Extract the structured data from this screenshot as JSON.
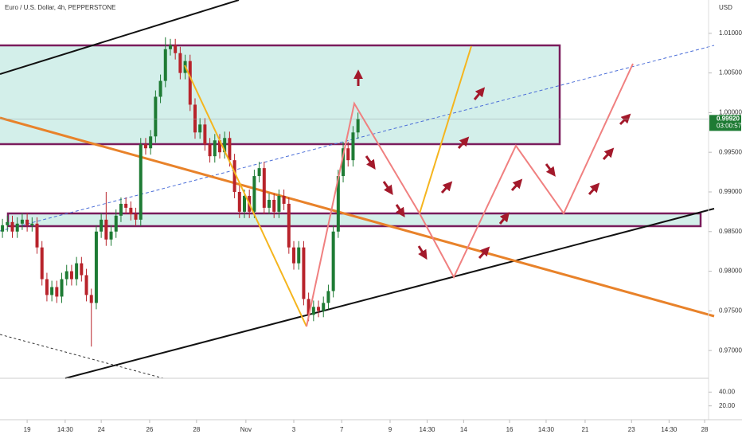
{
  "chart_data": {
    "type": "candlestick",
    "title": "Euro / U.S. Dollar, 4h, PEPPERSTONE",
    "currency": "USD",
    "last_price": {
      "value": 0.9992,
      "label": "0.99920"
    },
    "countdown": "03:00:57",
    "colors": {
      "up": "#1e7b34",
      "down": "#b8232b"
    },
    "open": [
      0.985,
      0.9858,
      0.9862,
      0.985,
      0.986,
      0.9865,
      0.9858,
      0.986,
      0.983,
      0.979,
      0.977,
      0.978,
      0.9768,
      0.979,
      0.98,
      0.979,
      0.981,
      0.9795,
      0.977,
      0.976,
      0.985,
      0.9865,
      0.984,
      0.985,
      0.987,
      0.9885,
      0.988,
      0.9872,
      0.9865,
      0.996,
      0.9955,
      0.997,
      1.002,
      1.004,
      1.008,
      1.0085,
      1.0075,
      1.005,
      1.0065,
      1.001,
      0.9975,
      0.9985,
      0.996,
      0.9945,
      0.9965,
      0.995,
      0.9968,
      0.994,
      0.99,
      0.9875,
      0.9895,
      0.9875,
      0.992,
      0.993,
      0.988,
      0.989,
      0.9875,
      0.9895,
      0.9885,
      0.983,
      0.981,
      0.983,
      0.9765,
      0.9745,
      0.9755,
      0.975,
      0.976,
      0.9775,
      0.985,
      0.992,
      0.9955,
      0.994,
      0.9975
    ],
    "high": [
      0.9866,
      0.987,
      0.987,
      0.9868,
      0.9873,
      0.9873,
      0.9868,
      0.9868,
      0.9838,
      0.9798,
      0.9788,
      0.9788,
      0.9798,
      0.9808,
      0.9808,
      0.9818,
      0.9818,
      0.9803,
      0.9778,
      0.9858,
      0.9873,
      0.99,
      0.9858,
      0.9878,
      0.9893,
      0.9893,
      0.9888,
      0.988,
      0.9968,
      0.9968,
      0.9978,
      1.0028,
      1.0048,
      1.0095,
      1.0093,
      1.0093,
      1.0083,
      1.0073,
      1.0073,
      1.0018,
      0.9993,
      0.9993,
      0.9968,
      0.9973,
      0.9973,
      0.9976,
      0.9976,
      0.9948,
      0.9908,
      0.9903,
      0.9903,
      0.9928,
      0.9938,
      0.9938,
      0.9898,
      0.9898,
      0.9903,
      0.9903,
      0.9893,
      0.9838,
      0.9838,
      0.9838,
      0.9773,
      0.9763,
      0.9763,
      0.9768,
      0.9783,
      0.9858,
      0.9928,
      0.9963,
      0.9963,
      0.9983,
      1.0
    ],
    "low": [
      0.9842,
      0.985,
      0.9842,
      0.9842,
      0.9852,
      0.985,
      0.985,
      0.9822,
      0.9782,
      0.9762,
      0.9762,
      0.976,
      0.976,
      0.9782,
      0.9782,
      0.9782,
      0.9787,
      0.9762,
      0.9705,
      0.9752,
      0.9842,
      0.9832,
      0.9832,
      0.9842,
      0.9862,
      0.9872,
      0.9864,
      0.9857,
      0.9857,
      0.9947,
      0.9947,
      0.9962,
      1.0012,
      1.0032,
      1.0072,
      1.0067,
      1.0042,
      1.0042,
      1.0002,
      0.9967,
      0.9967,
      0.9952,
      0.9937,
      0.9937,
      0.9942,
      0.9942,
      0.9932,
      0.9892,
      0.9867,
      0.9867,
      0.9867,
      0.9867,
      0.9912,
      0.9872,
      0.9872,
      0.9867,
      0.9867,
      0.9877,
      0.9822,
      0.9802,
      0.9802,
      0.9757,
      0.9737,
      0.9737,
      0.9742,
      0.9742,
      0.9752,
      0.9767,
      0.9842,
      0.9912,
      0.9932,
      0.9932,
      0.9967
    ],
    "close": [
      0.9858,
      0.9862,
      0.985,
      0.986,
      0.9865,
      0.9858,
      0.986,
      0.983,
      0.979,
      0.977,
      0.978,
      0.9768,
      0.979,
      0.98,
      0.979,
      0.981,
      0.9795,
      0.977,
      0.976,
      0.985,
      0.9865,
      0.984,
      0.985,
      0.987,
      0.9885,
      0.988,
      0.9872,
      0.9865,
      0.996,
      0.9955,
      0.997,
      1.002,
      1.004,
      1.008,
      1.0085,
      1.0075,
      1.005,
      1.0065,
      1.001,
      0.9975,
      0.9985,
      0.996,
      0.9945,
      0.9965,
      0.995,
      0.9968,
      0.994,
      0.99,
      0.9875,
      0.9895,
      0.9875,
      0.992,
      0.993,
      0.988,
      0.989,
      0.9875,
      0.9895,
      0.9885,
      0.983,
      0.981,
      0.983,
      0.9765,
      0.9745,
      0.9755,
      0.975,
      0.976,
      0.9775,
      0.985,
      0.992,
      0.9955,
      0.994,
      0.9975,
      0.9992
    ],
    "xlim": [
      -0.5,
      143
    ],
    "xticks": [
      {
        "value": 5,
        "label": "19"
      },
      {
        "value": 12.7,
        "label": "14:30"
      },
      {
        "value": 20,
        "label": "24"
      },
      {
        "value": 29.8,
        "label": "26"
      },
      {
        "value": 39.3,
        "label": "28"
      },
      {
        "value": 49.3,
        "label": "Nov"
      },
      {
        "value": 59,
        "label": "3"
      },
      {
        "value": 68.7,
        "label": "7"
      },
      {
        "value": 78.5,
        "label": "9"
      },
      {
        "value": 86,
        "label": "14:30"
      },
      {
        "value": 93.4,
        "label": "14"
      },
      {
        "value": 102.7,
        "label": "16"
      },
      {
        "value": 110.1,
        "label": "14:30"
      },
      {
        "value": 118,
        "label": "21"
      },
      {
        "value": 127.4,
        "label": "23"
      },
      {
        "value": 135,
        "label": "14:30"
      },
      {
        "value": 142.2,
        "label": "28"
      }
    ],
    "ylim": [
      0.9665,
      1.0142
    ],
    "yticks": [
      {
        "value": 0.97,
        "label": "0.97000"
      },
      {
        "value": 0.975,
        "label": "0.97500"
      },
      {
        "value": 0.98,
        "label": "0.98000"
      },
      {
        "value": 0.985,
        "label": "0.98500"
      },
      {
        "value": 0.99,
        "label": "0.99000"
      },
      {
        "value": 0.995,
        "label": "0.99500"
      },
      {
        "value": 1.0,
        "label": "1.00000"
      },
      {
        "value": 1.005,
        "label": "1.00500"
      },
      {
        "value": 1.01,
        "label": "1.01000"
      }
    ],
    "indicator_ylim": [
      0,
      60
    ],
    "indicator_yticks": [
      {
        "value": 40,
        "label": "40.00"
      },
      {
        "value": 20,
        "label": "20.00"
      }
    ]
  }
}
